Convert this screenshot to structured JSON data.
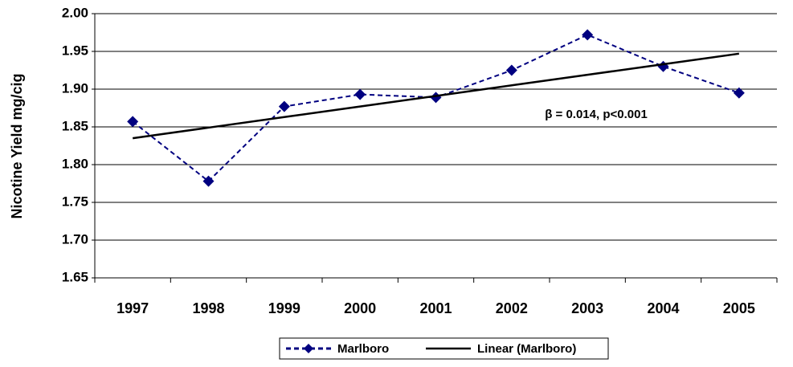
{
  "chart_data": {
    "type": "line",
    "y_label": "Nicotine Yield mg/cig",
    "categories": [
      "1997",
      "1998",
      "1999",
      "2000",
      "2001",
      "2002",
      "2003",
      "2004",
      "2005"
    ],
    "series": [
      {
        "name": "Marlboro",
        "color": "#000080",
        "values": [
          1.857,
          1.778,
          1.877,
          1.893,
          1.889,
          1.925,
          1.972,
          1.93,
          1.895
        ]
      },
      {
        "name": "Linear (Marlboro)",
        "color": "#000000",
        "values": [
          1.835,
          1.849,
          1.863,
          1.877,
          1.891,
          1.905,
          1.919,
          1.933,
          1.947
        ]
      }
    ],
    "annotation": "β = 0.014, p<0.001",
    "ylim": [
      1.65,
      2.0
    ],
    "yticks": [
      {
        "value": 1.65,
        "label": "1.65"
      },
      {
        "value": 1.7,
        "label": "1.70"
      },
      {
        "value": 1.75,
        "label": "1.75"
      },
      {
        "value": 1.8,
        "label": "1.80"
      },
      {
        "value": 1.85,
        "label": "1.85"
      },
      {
        "value": 1.9,
        "label": "1.90"
      },
      {
        "value": 1.95,
        "label": "1.95"
      },
      {
        "value": 2.0,
        "label": "2.00"
      }
    ],
    "grid": true,
    "legend": "bottom"
  }
}
